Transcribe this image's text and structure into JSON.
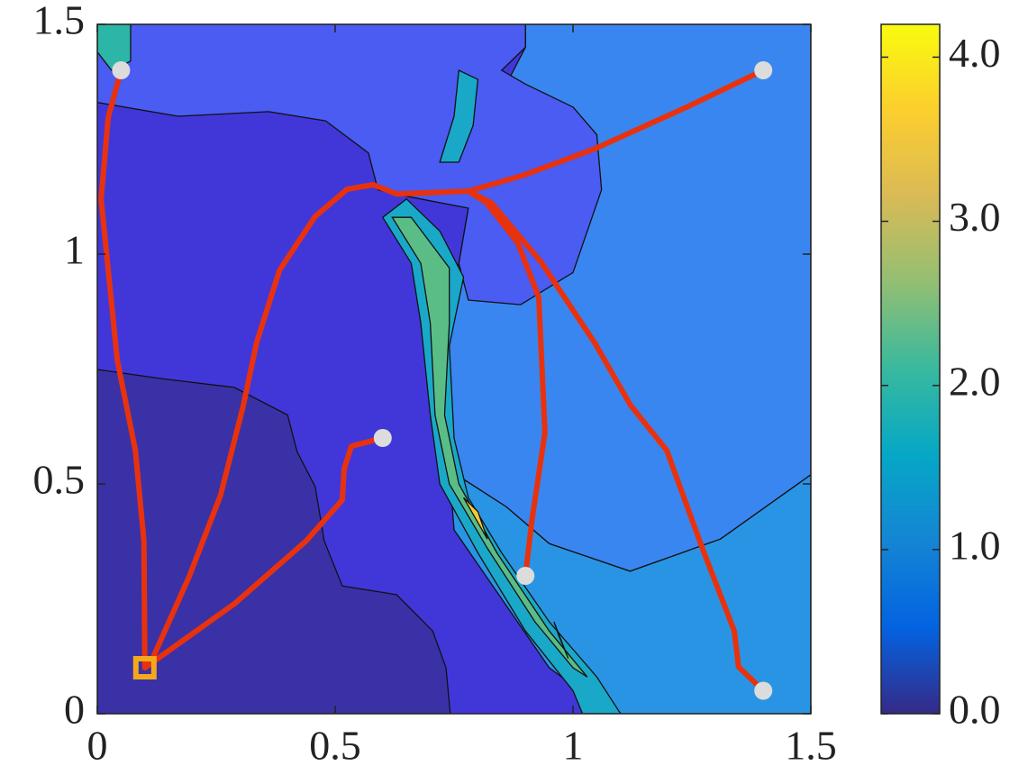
{
  "chart_data": {
    "type": "contour",
    "xlim": [
      0,
      1.5
    ],
    "ylim": [
      0,
      1.5
    ],
    "xticks": [
      0,
      0.5,
      1,
      1.5
    ],
    "yticks": [
      0,
      0.5,
      1,
      1.5
    ],
    "regions": [
      {
        "level": 0.5,
        "color": "#4137d9",
        "x": [
          0,
          1.5,
          1.5,
          0
        ],
        "y": [
          0,
          0,
          1.5,
          1.5
        ]
      },
      {
        "level": 1.2,
        "color": "#3a86f0",
        "x": [
          0.9,
          1.5,
          1.5,
          1.31,
          1.12,
          0.95,
          0.86,
          0.74,
          0.74,
          0.72,
          0.76,
          0.78,
          0.85,
          0.9
        ],
        "y": [
          1.5,
          1.5,
          0.52,
          0.38,
          0.31,
          0.37,
          0.45,
          0.53,
          0.7,
          0.85,
          0.98,
          1.1,
          1.35,
          1.45
        ]
      },
      {
        "level": 1.4,
        "color": "#2a94e4",
        "x": [
          1.5,
          1.31,
          1.12,
          0.95,
          0.86,
          0.74,
          0.75,
          0.85,
          0.95,
          1.08,
          1.5
        ],
        "y": [
          0.52,
          0.38,
          0.31,
          0.37,
          0.45,
          0.53,
          0.4,
          0.25,
          0.1,
          0,
          0
        ]
      },
      {
        "level": 0.8,
        "color": "#4a5cf1",
        "x": [
          0,
          0.9,
          0.9,
          0.85,
          0.9,
          1.0,
          1.05,
          1.06,
          1.0,
          0.89,
          0.78,
          0.76,
          0.78,
          0.63,
          0.59,
          0.57,
          0.48,
          0.36,
          0.17,
          0
        ],
        "y": [
          1.5,
          1.5,
          1.45,
          1.4,
          1.37,
          1.32,
          1.26,
          1.14,
          0.96,
          0.89,
          0.9,
          0.98,
          1.1,
          1.13,
          1.14,
          1.22,
          1.29,
          1.31,
          1.3,
          1.33
        ]
      },
      {
        "level": 0.2,
        "color": "#3a31a6",
        "x": [
          0,
          0,
          0.136,
          0.288,
          0.4,
          0.42,
          0.458,
          0.477,
          0.515,
          0.629,
          0.705,
          0.733,
          0.742
        ],
        "y": [
          0,
          0.749,
          0.729,
          0.71,
          0.65,
          0.57,
          0.494,
          0.376,
          0.278,
          0.259,
          0.18,
          0.1,
          0
        ]
      },
      {
        "level": 1.6,
        "color": "#1aa8c8",
        "x": [
          0.6,
          0.66,
          0.68,
          0.7,
          0.72,
          0.8,
          0.9,
          1.0,
          1.02,
          1.1,
          1.05,
          0.95,
          0.85,
          0.78,
          0.75,
          0.74,
          0.77,
          0.72,
          0.65
        ],
        "y": [
          1.08,
          0.98,
          0.85,
          0.65,
          0.5,
          0.35,
          0.18,
          0.05,
          0,
          0,
          0.08,
          0.2,
          0.35,
          0.47,
          0.6,
          0.8,
          0.95,
          1.05,
          1.12
        ]
      },
      {
        "level": 2.6,
        "color": "#5bbd86",
        "x": [
          0.62,
          0.68,
          0.7,
          0.71,
          0.74,
          0.82,
          0.92,
          1.0,
          1.03,
          0.95,
          0.84,
          0.76,
          0.73,
          0.74,
          0.74,
          0.66
        ],
        "y": [
          1.08,
          0.98,
          0.85,
          0.65,
          0.5,
          0.36,
          0.2,
          0.1,
          0.08,
          0.18,
          0.35,
          0.5,
          0.65,
          0.85,
          0.97,
          1.08
        ]
      },
      {
        "level": 3.6,
        "color": "#f6c935",
        "x": [
          0.77,
          0.82,
          0.8
        ],
        "y": [
          0.47,
          0.38,
          0.44
        ]
      },
      {
        "level": 3.6,
        "color": "#f6c935",
        "x": [
          0.96,
          0.99,
          0.97
        ],
        "y": [
          0.2,
          0.12,
          0.17
        ]
      },
      {
        "level": 1.8,
        "color": "#1aa8c8",
        "x": [
          0.72,
          0.75,
          0.76,
          0.8,
          0.79,
          0.76
        ],
        "y": [
          1.2,
          1.3,
          1.4,
          1.38,
          1.28,
          1.2
        ]
      },
      {
        "level": 2.5,
        "color": "#2cb6a8",
        "x": [
          0,
          0.07,
          0.07,
          0.03,
          0
        ],
        "y": [
          1.5,
          1.5,
          1.42,
          1.4,
          1.44
        ]
      }
    ],
    "paths": [
      {
        "color": "#e8320e",
        "x": [
          0.05,
          0.023,
          0.008,
          0.023,
          0.042,
          0.08,
          0.098,
          0.1
        ],
        "y": [
          1.4,
          1.298,
          1.12,
          0.965,
          0.769,
          0.573,
          0.376,
          0.1
        ]
      },
      {
        "color": "#e8320e",
        "x": [
          1.4,
          1.235,
          1.045,
          0.894,
          0.78,
          0.629,
          0.58,
          0.525,
          0.458,
          0.383,
          0.335,
          0.307,
          0.259,
          0.193,
          0.117,
          0.1
        ],
        "y": [
          1.4,
          1.318,
          1.229,
          1.171,
          1.137,
          1.131,
          1.151,
          1.141,
          1.082,
          0.965,
          0.808,
          0.671,
          0.475,
          0.298,
          0.122,
          0.1
        ]
      },
      {
        "color": "#e8320e",
        "x": [
          0.6,
          0.534,
          0.519,
          0.515,
          0.439,
          0.288,
          0.1
        ],
        "y": [
          0.6,
          0.582,
          0.533,
          0.465,
          0.376,
          0.239,
          0.1
        ]
      },
      {
        "color": "#e8320e",
        "x": [
          0.9,
          0.913,
          0.941,
          0.928,
          0.884,
          0.818,
          0.78
        ],
        "y": [
          0.3,
          0.416,
          0.612,
          0.906,
          1.024,
          1.112,
          1.137
        ]
      },
      {
        "color": "#e8320e",
        "x": [
          1.4,
          1.348,
          1.339,
          1.273,
          1.197,
          1.121,
          1.045,
          0.932,
          0.828,
          0.78
        ],
        "y": [
          0.05,
          0.102,
          0.18,
          0.357,
          0.573,
          0.671,
          0.808,
          0.984,
          1.112,
          1.137
        ]
      }
    ],
    "starts": {
      "color": "#dcdcdc",
      "x": [
        0.05,
        1.4,
        0.6,
        0.9,
        1.4
      ],
      "y": [
        1.4,
        1.4,
        0.6,
        0.3,
        0.05
      ]
    },
    "goal": {
      "color": "#f5a81c",
      "x": 0.1,
      "y": 0.1
    },
    "colorbar": {
      "clim": [
        0,
        4.2
      ],
      "colors": [
        "#352a87",
        "#0363e1",
        "#1485d4",
        "#06a7c6",
        "#38b99e",
        "#92bf73",
        "#d9ba56",
        "#fcce2e",
        "#f9fb0e"
      ],
      "ticks": [
        {
          "value": 0,
          "label": "0.0"
        },
        {
          "value": 1,
          "label": "1.0"
        },
        {
          "value": 2,
          "label": "2.0"
        },
        {
          "value": 3,
          "label": "3.0"
        },
        {
          "value": 4,
          "label": "4.0"
        }
      ]
    }
  }
}
